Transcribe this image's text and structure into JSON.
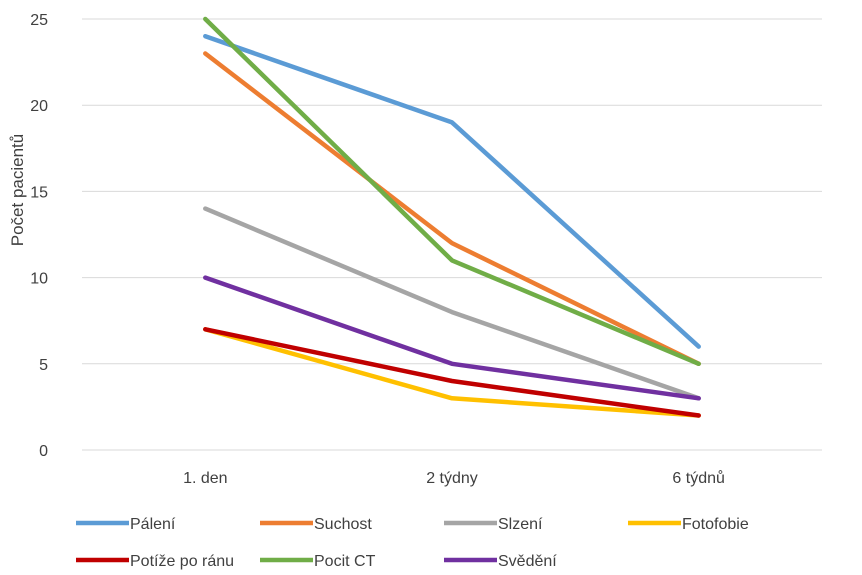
{
  "chart_data": {
    "type": "line",
    "title": "",
    "xlabel": "",
    "ylabel": "Počet pacientů",
    "categories": [
      "1. den",
      "2 týdny",
      "6 týdnů"
    ],
    "ylim": [
      0,
      25
    ],
    "yticks": [
      0,
      5,
      10,
      15,
      20,
      25
    ],
    "grid": true,
    "legend_position": "bottom",
    "series": [
      {
        "name": "Pálení",
        "color": "#5b9bd5",
        "values": [
          24,
          19,
          6
        ]
      },
      {
        "name": "Suchost",
        "color": "#ed7d31",
        "values": [
          23,
          12,
          5
        ]
      },
      {
        "name": "Slzení",
        "color": "#a5a5a5",
        "values": [
          14,
          8,
          3
        ]
      },
      {
        "name": "Fotofobie",
        "color": "#ffc000",
        "values": [
          7,
          3,
          2
        ]
      },
      {
        "name": "Potíže po ránu",
        "color": "#c00000",
        "values": [
          7,
          4,
          2
        ]
      },
      {
        "name": "Pocit CT",
        "color": "#70ad47",
        "values": [
          25,
          11,
          5
        ]
      },
      {
        "name": "Svědění",
        "color": "#7030a0",
        "values": [
          10,
          5,
          3
        ]
      }
    ]
  }
}
